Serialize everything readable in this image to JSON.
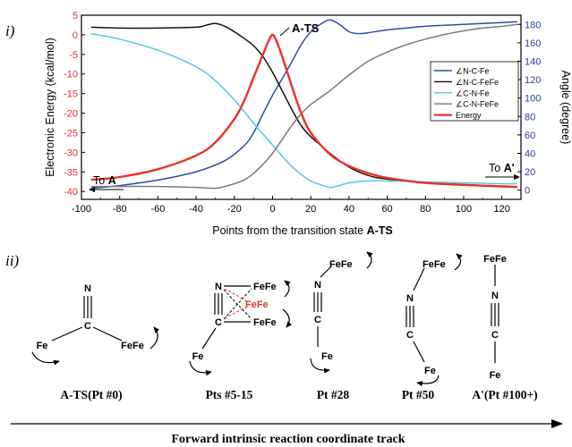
{
  "panel_labels": {
    "top": "i)",
    "bottom": "ii)"
  },
  "chart_data": {
    "type": "line",
    "title": "",
    "xlabel": "Points from the transition state ",
    "xlabel_bold": "A-TS",
    "ylabel_left": "Electronic Energy (kcal/mol)",
    "ylabel_right": "Angle (degree)",
    "xlim": [
      -100,
      130
    ],
    "ylim_left": [
      -42,
      5
    ],
    "ylim_right": [
      -10,
      190
    ],
    "xticks": [
      -100,
      -80,
      -60,
      -40,
      -20,
      0,
      20,
      40,
      60,
      80,
      100,
      120
    ],
    "yticks_left": [
      5,
      0,
      -5,
      -10,
      -15,
      -20,
      -25,
      -30,
      -35,
      -40
    ],
    "yticks_right": [
      0,
      20,
      40,
      60,
      80,
      100,
      120,
      140,
      160,
      180
    ],
    "grid": false,
    "legend_position": "right",
    "colors": {
      "left_axis": "#e8302f",
      "right_axis": "#2b3f9e",
      "axis_frame": "#000000"
    },
    "annotations": {
      "peak_label": "A-TS",
      "to_a_prefix": "To ",
      "to_a_bold": "A",
      "to_aprime_prefix": "To ",
      "to_aprime_bold": "A'"
    },
    "series": [
      {
        "name": "∠N-C-Fe",
        "axis": "right",
        "color": "#2e4ea5",
        "x": [
          -95,
          -80,
          -60,
          -40,
          -25,
          -15,
          -10,
          -5,
          0,
          5,
          10,
          15,
          20,
          25,
          30,
          35,
          40,
          45,
          50,
          60,
          70,
          80,
          90,
          100,
          110,
          120,
          128
        ],
        "y": [
          2,
          5,
          11,
          20,
          32,
          48,
          62,
          83,
          103,
          121,
          139,
          158,
          172,
          180,
          185,
          180,
          172,
          170,
          171,
          174,
          176,
          178,
          179,
          180,
          181,
          182,
          183
        ]
      },
      {
        "name": "∠N-C-FeFe",
        "axis": "right",
        "color": "#111111",
        "x": [
          -95,
          -80,
          -60,
          -40,
          -35,
          -30,
          -25,
          -20,
          -15,
          -10,
          -5,
          0,
          5,
          10,
          15,
          20,
          25,
          30,
          40,
          50,
          60,
          80,
          100,
          120,
          128
        ],
        "y": [
          177,
          176,
          176,
          177,
          179,
          181,
          178,
          172,
          165,
          157,
          145,
          128,
          108,
          88,
          70,
          58,
          49,
          40,
          25,
          16,
          12,
          8,
          6,
          4,
          3
        ]
      },
      {
        "name": "∠C-N-Fe",
        "axis": "right",
        "color": "#58c6df",
        "x": [
          -95,
          -80,
          -60,
          -40,
          -30,
          -20,
          -10,
          0,
          5,
          10,
          15,
          20,
          25,
          30,
          35,
          40,
          50,
          60,
          80,
          100,
          120,
          128
        ],
        "y": [
          170,
          164,
          152,
          134,
          119,
          98,
          73,
          49,
          37,
          26,
          17,
          10,
          6,
          3,
          5,
          8,
          10,
          10,
          9,
          8,
          7,
          7
        ]
      },
      {
        "name": "∠C-N-FeFe",
        "axis": "right",
        "color": "#7a7a7a",
        "x": [
          -95,
          -80,
          -60,
          -40,
          -30,
          -25,
          -20,
          -15,
          -10,
          -5,
          0,
          5,
          10,
          15,
          20,
          30,
          40,
          50,
          60,
          70,
          80,
          90,
          100,
          110,
          120,
          128
        ],
        "y": [
          4,
          4,
          4,
          3,
          2,
          4,
          7,
          11,
          18,
          28,
          40,
          55,
          70,
          83,
          93,
          108,
          125,
          140,
          150,
          158,
          164,
          169,
          173,
          176,
          178,
          180
        ]
      },
      {
        "name": "Energy",
        "axis": "left",
        "color": "#e8302f",
        "x": [
          -95,
          -80,
          -60,
          -40,
          -30,
          -20,
          -15,
          -10,
          -5,
          -2,
          0,
          2,
          5,
          10,
          15,
          20,
          30,
          40,
          50,
          60,
          80,
          100,
          120,
          128
        ],
        "y": [
          -37,
          -36.3,
          -34.3,
          -30.8,
          -27.5,
          -21.5,
          -17,
          -11,
          -5,
          -1.5,
          0,
          -1.5,
          -5.5,
          -13,
          -20,
          -25,
          -30.5,
          -33.5,
          -35.3,
          -36.5,
          -37.8,
          -38.3,
          -38.7,
          -38.8
        ]
      }
    ]
  },
  "schematic": {
    "structures": [
      {
        "id": "ats",
        "caption": "A-TS(Pt #0)",
        "atom_N": "N",
        "atom_C": "C",
        "atom_Fe": "Fe",
        "atom_FeFe": "FeFe"
      },
      {
        "id": "pts5_15",
        "caption": "Pts #5-15",
        "atom_N": "N",
        "atom_C": "C",
        "atom_Fe": "Fe",
        "atom_FeFe_top": "FeFe",
        "atom_FeFe_mid": "FeFe",
        "atom_FeFe_bot": "FeFe",
        "highlight_color": "#e8302f"
      },
      {
        "id": "pt28",
        "caption": "Pt #28",
        "atom_N": "N",
        "atom_C": "C",
        "atom_Fe": "Fe",
        "atom_FeFe": "FeFe"
      },
      {
        "id": "pt50",
        "caption": "Pt #50",
        "atom_N": "N",
        "atom_C": "C",
        "atom_Fe": "Fe",
        "atom_FeFe": "FeFe"
      },
      {
        "id": "aprime",
        "caption": "A'(Pt #100+)",
        "atom_N": "N",
        "atom_C": "C",
        "atom_Fe": "Fe",
        "atom_FeFe": "FeFe"
      }
    ],
    "track_label": "Forward intrinsic reaction coordinate track"
  }
}
